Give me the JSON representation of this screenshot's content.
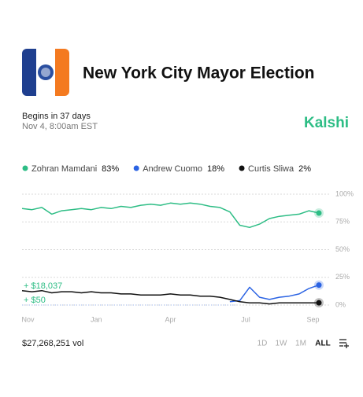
{
  "header": {
    "title": "New York City Mayor Election",
    "status": "Begins in 37 days",
    "date": "Nov 4, 8:00am EST",
    "brand": "Kalshi"
  },
  "chart_data": {
    "type": "line",
    "x": [
      0,
      10,
      20,
      30,
      40,
      50,
      60,
      70,
      80,
      90,
      100,
      110,
      120,
      130,
      140,
      150,
      160,
      170,
      180,
      190,
      200,
      210,
      220,
      230,
      240,
      250,
      260,
      270,
      280,
      290,
      300
    ],
    "xlim": [
      0,
      300
    ],
    "xticks": [
      {
        "value": 6,
        "label": "Nov"
      },
      {
        "value": 75,
        "label": "Jan"
      },
      {
        "value": 150,
        "label": "Apr"
      },
      {
        "value": 226,
        "label": "Jul"
      },
      {
        "value": 294,
        "label": "Sep"
      }
    ],
    "ylim": [
      0,
      100
    ],
    "yticks": [
      {
        "value": 0,
        "label": "0%"
      },
      {
        "value": 25,
        "label": "25%"
      },
      {
        "value": 50,
        "label": "50%"
      },
      {
        "value": 75,
        "label": "75%"
      },
      {
        "value": 100,
        "label": "100%"
      }
    ],
    "grid": true,
    "series": [
      {
        "name": "Zohran Mamdani",
        "current": "83%",
        "color": "#2dbd85",
        "values": [
          87,
          86,
          88,
          82,
          85,
          86,
          87,
          86,
          88,
          87,
          89,
          88,
          90,
          91,
          90,
          92,
          91,
          92,
          91,
          89,
          88,
          84,
          72,
          70,
          73,
          78,
          80,
          81,
          82,
          85,
          83
        ]
      },
      {
        "name": "Andrew Cuomo",
        "current": "18%",
        "color": "#2b63e3",
        "values": [
          null,
          null,
          null,
          null,
          null,
          null,
          null,
          null,
          null,
          null,
          null,
          null,
          null,
          null,
          null,
          null,
          null,
          null,
          null,
          null,
          null,
          3,
          4,
          16,
          7,
          5,
          7,
          8,
          10,
          15,
          18
        ]
      },
      {
        "name": "Curtis Sliwa",
        "current": "2%",
        "color": "#111111",
        "values": [
          13,
          12,
          13,
          11,
          12,
          12,
          11,
          12,
          11,
          11,
          10,
          10,
          9,
          9,
          9,
          10,
          9,
          9,
          8,
          8,
          7,
          5,
          3,
          2,
          2,
          1,
          2,
          2,
          2,
          2,
          2
        ]
      }
    ],
    "annotations": [
      {
        "text": "+ $18,037",
        "color": "#2dbd85"
      },
      {
        "text": "+ $50",
        "color": "#2dbd85"
      }
    ]
  },
  "footer": {
    "volume": "$27,268,251 vol",
    "ranges": [
      "1D",
      "1W",
      "1M",
      "ALL"
    ]
  }
}
